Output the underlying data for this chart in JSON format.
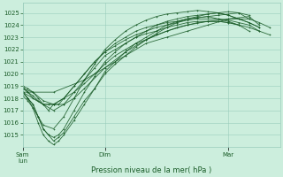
{
  "title": "",
  "xlabel": "Pression niveau de la mer( hPa )",
  "bg_color": "#cceedd",
  "grid_color": "#99ccbb",
  "line_color": "#1a5c28",
  "ylim": [
    1014.0,
    1025.8
  ],
  "yticks": [
    1015,
    1016,
    1017,
    1018,
    1019,
    1020,
    1021,
    1022,
    1023,
    1024,
    1025
  ],
  "xtick_labels": [
    "Sam|lun",
    "Dim",
    "Mar"
  ],
  "xtick_positions": [
    0,
    96,
    240
  ],
  "xlim": [
    0,
    300
  ],
  "lines": [
    {
      "x": [
        0,
        6,
        12,
        18,
        24,
        30,
        36,
        42,
        48,
        60,
        72,
        84,
        96,
        108,
        120,
        132,
        144,
        156,
        168,
        180,
        192,
        204,
        216,
        228,
        240,
        252,
        264
      ],
      "y": [
        1018.5,
        1018.0,
        1017.5,
        1016.5,
        1015.5,
        1015.0,
        1014.5,
        1014.8,
        1015.2,
        1016.5,
        1017.8,
        1018.8,
        1020.0,
        1020.8,
        1021.5,
        1022.2,
        1022.8,
        1023.3,
        1023.8,
        1024.2,
        1024.5,
        1024.7,
        1024.9,
        1025.0,
        1025.1,
        1025.0,
        1024.8
      ]
    },
    {
      "x": [
        0,
        6,
        12,
        18,
        24,
        30,
        36,
        42,
        48,
        60,
        72,
        84,
        96,
        108,
        120,
        132,
        144,
        156,
        168,
        180,
        192,
        204,
        216,
        228,
        240,
        252
      ],
      "y": [
        1018.2,
        1017.8,
        1017.2,
        1016.0,
        1015.0,
        1014.5,
        1014.2,
        1014.5,
        1015.0,
        1016.2,
        1017.5,
        1018.8,
        1020.2,
        1021.0,
        1021.8,
        1022.5,
        1023.0,
        1023.5,
        1024.0,
        1024.3,
        1024.5,
        1024.6,
        1024.7,
        1024.5,
        1024.3,
        1024.0
      ]
    },
    {
      "x": [
        0,
        6,
        12,
        18,
        24,
        30,
        36,
        48,
        60,
        72,
        84,
        96,
        108,
        120,
        132,
        144,
        156,
        168,
        180,
        192,
        204,
        216,
        228,
        240,
        252,
        264
      ],
      "y": [
        1018.8,
        1018.5,
        1018.2,
        1017.8,
        1017.5,
        1017.5,
        1017.5,
        1018.0,
        1018.5,
        1019.2,
        1020.0,
        1020.8,
        1021.5,
        1022.0,
        1022.5,
        1022.8,
        1023.2,
        1023.5,
        1023.8,
        1024.0,
        1024.2,
        1024.3,
        1024.3,
        1024.2,
        1024.0,
        1023.5
      ]
    },
    {
      "x": [
        0,
        6,
        12,
        18,
        24,
        30,
        36,
        42,
        48,
        60,
        72,
        84,
        96,
        108,
        120,
        132,
        144,
        156,
        168,
        180,
        192,
        204,
        216,
        228,
        240,
        252,
        264
      ],
      "y": [
        1019.0,
        1018.8,
        1018.5,
        1018.0,
        1017.5,
        1017.0,
        1017.5,
        1017.5,
        1018.0,
        1019.0,
        1020.0,
        1021.0,
        1021.8,
        1022.5,
        1023.0,
        1023.5,
        1023.8,
        1024.0,
        1024.2,
        1024.3,
        1024.5,
        1024.6,
        1024.7,
        1024.8,
        1024.9,
        1025.0,
        1024.5
      ]
    },
    {
      "x": [
        0,
        6,
        12,
        18,
        24,
        30,
        36,
        42,
        48,
        60,
        72,
        84,
        96,
        108,
        120,
        132,
        144,
        156,
        168,
        180,
        192,
        204,
        216,
        228,
        240,
        252,
        264,
        276
      ],
      "y": [
        1018.5,
        1018.0,
        1017.5,
        1016.5,
        1015.5,
        1015.0,
        1014.8,
        1015.0,
        1015.5,
        1017.0,
        1018.5,
        1019.8,
        1021.0,
        1021.8,
        1022.5,
        1023.0,
        1023.5,
        1024.0,
        1024.3,
        1024.5,
        1024.7,
        1024.8,
        1024.9,
        1025.0,
        1024.8,
        1024.5,
        1024.2,
        1023.8
      ]
    },
    {
      "x": [
        0,
        12,
        24,
        36,
        48,
        60,
        72,
        84,
        96,
        108,
        120,
        132,
        144,
        156,
        168,
        180,
        192,
        204,
        216,
        228,
        240,
        252,
        264,
        276
      ],
      "y": [
        1018.8,
        1018.5,
        1017.8,
        1017.5,
        1018.0,
        1019.0,
        1020.0,
        1021.0,
        1021.8,
        1022.3,
        1022.8,
        1023.2,
        1023.5,
        1023.8,
        1024.0,
        1024.2,
        1024.4,
        1024.5,
        1024.5,
        1024.5,
        1024.4,
        1024.2,
        1024.0,
        1023.5
      ]
    },
    {
      "x": [
        0,
        6,
        12,
        18,
        24,
        36,
        48,
        60,
        72,
        84,
        96,
        108,
        120,
        132,
        144,
        156,
        168,
        180,
        192,
        204,
        216,
        228,
        240,
        252,
        264,
        276
      ],
      "y": [
        1018.5,
        1018.0,
        1017.2,
        1016.5,
        1015.8,
        1015.5,
        1016.5,
        1018.0,
        1019.5,
        1020.8,
        1022.0,
        1022.8,
        1023.5,
        1024.0,
        1024.4,
        1024.7,
        1024.9,
        1025.0,
        1025.1,
        1025.2,
        1025.1,
        1025.0,
        1024.8,
        1024.5,
        1024.2,
        1023.8
      ]
    },
    {
      "x": [
        0,
        36,
        72,
        96,
        120,
        144,
        168,
        192,
        216,
        240,
        264,
        276
      ],
      "y": [
        1018.5,
        1018.5,
        1019.5,
        1020.5,
        1021.5,
        1022.5,
        1023.0,
        1023.5,
        1024.0,
        1024.5,
        1024.7,
        1024.0
      ]
    },
    {
      "x": [
        0,
        36,
        48,
        60,
        72,
        84,
        96,
        108,
        120,
        132,
        144,
        156,
        168,
        180,
        192,
        204,
        216,
        228,
        240,
        252,
        264,
        276,
        288
      ],
      "y": [
        1018.5,
        1017.0,
        1017.5,
        1018.5,
        1019.5,
        1020.5,
        1021.5,
        1022.0,
        1022.5,
        1023.0,
        1023.3,
        1023.5,
        1023.8,
        1024.0,
        1024.2,
        1024.3,
        1024.3,
        1024.3,
        1024.2,
        1024.0,
        1023.8,
        1023.5,
        1023.2
      ]
    },
    {
      "x": [
        0,
        6,
        12,
        24,
        36,
        48,
        60,
        72,
        96,
        120,
        144,
        168,
        192,
        216,
        240,
        264,
        276,
        288
      ],
      "y": [
        1019.0,
        1018.5,
        1018.0,
        1017.5,
        1017.5,
        1017.5,
        1018.0,
        1018.8,
        1020.5,
        1021.8,
        1022.8,
        1023.5,
        1024.0,
        1024.3,
        1024.5,
        1024.5,
        1024.2,
        1023.8
      ]
    }
  ]
}
